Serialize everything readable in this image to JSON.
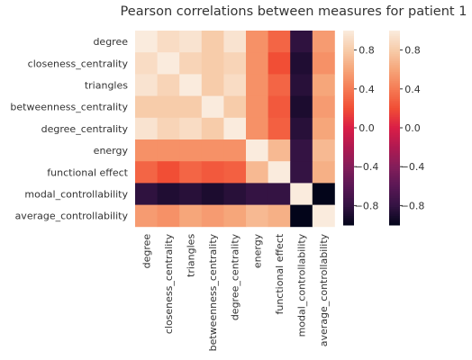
{
  "chart_data": {
    "type": "heatmap",
    "title": "Pearson correlations between measures for patient 1",
    "rows": [
      "degree",
      "closeness_centrality",
      "triangles",
      "betweenness_centrality",
      "degree_centrality",
      "energy",
      "functional effect",
      "modal_controllability",
      "average_controllability"
    ],
    "columns": [
      "degree",
      "closeness_centrality",
      "triangles",
      "betweenness_centrality",
      "degree_centrality",
      "energy",
      "functional effect",
      "modal_controllability",
      "average_controllability"
    ],
    "values": [
      [
        1.0,
        0.9,
        0.95,
        0.8,
        0.95,
        0.5,
        0.3,
        -0.82,
        0.55
      ],
      [
        0.9,
        1.0,
        0.85,
        0.8,
        0.85,
        0.5,
        0.2,
        -0.88,
        0.5
      ],
      [
        0.95,
        0.85,
        1.0,
        0.8,
        0.9,
        0.5,
        0.3,
        -0.85,
        0.6
      ],
      [
        0.8,
        0.8,
        0.8,
        1.0,
        0.8,
        0.5,
        0.25,
        -0.9,
        0.55
      ],
      [
        0.95,
        0.85,
        0.9,
        0.8,
        1.0,
        0.5,
        0.28,
        -0.85,
        0.6
      ],
      [
        0.5,
        0.5,
        0.5,
        0.5,
        0.5,
        1.0,
        0.7,
        -0.8,
        0.7
      ],
      [
        0.3,
        0.2,
        0.3,
        0.25,
        0.28,
        0.7,
        1.0,
        -0.8,
        0.65
      ],
      [
        -0.82,
        -0.88,
        -0.85,
        -0.9,
        -0.85,
        -0.8,
        -0.8,
        1.0,
        -1.0
      ],
      [
        0.55,
        0.5,
        0.6,
        0.55,
        0.6,
        0.7,
        0.65,
        -1.0,
        1.0
      ]
    ],
    "colorbar_ticks": [
      "0.8",
      "0.4",
      "0.0",
      "−0.4",
      "−0.8"
    ],
    "colorbar_range": [
      -1,
      1
    ],
    "colorbars": 2
  }
}
